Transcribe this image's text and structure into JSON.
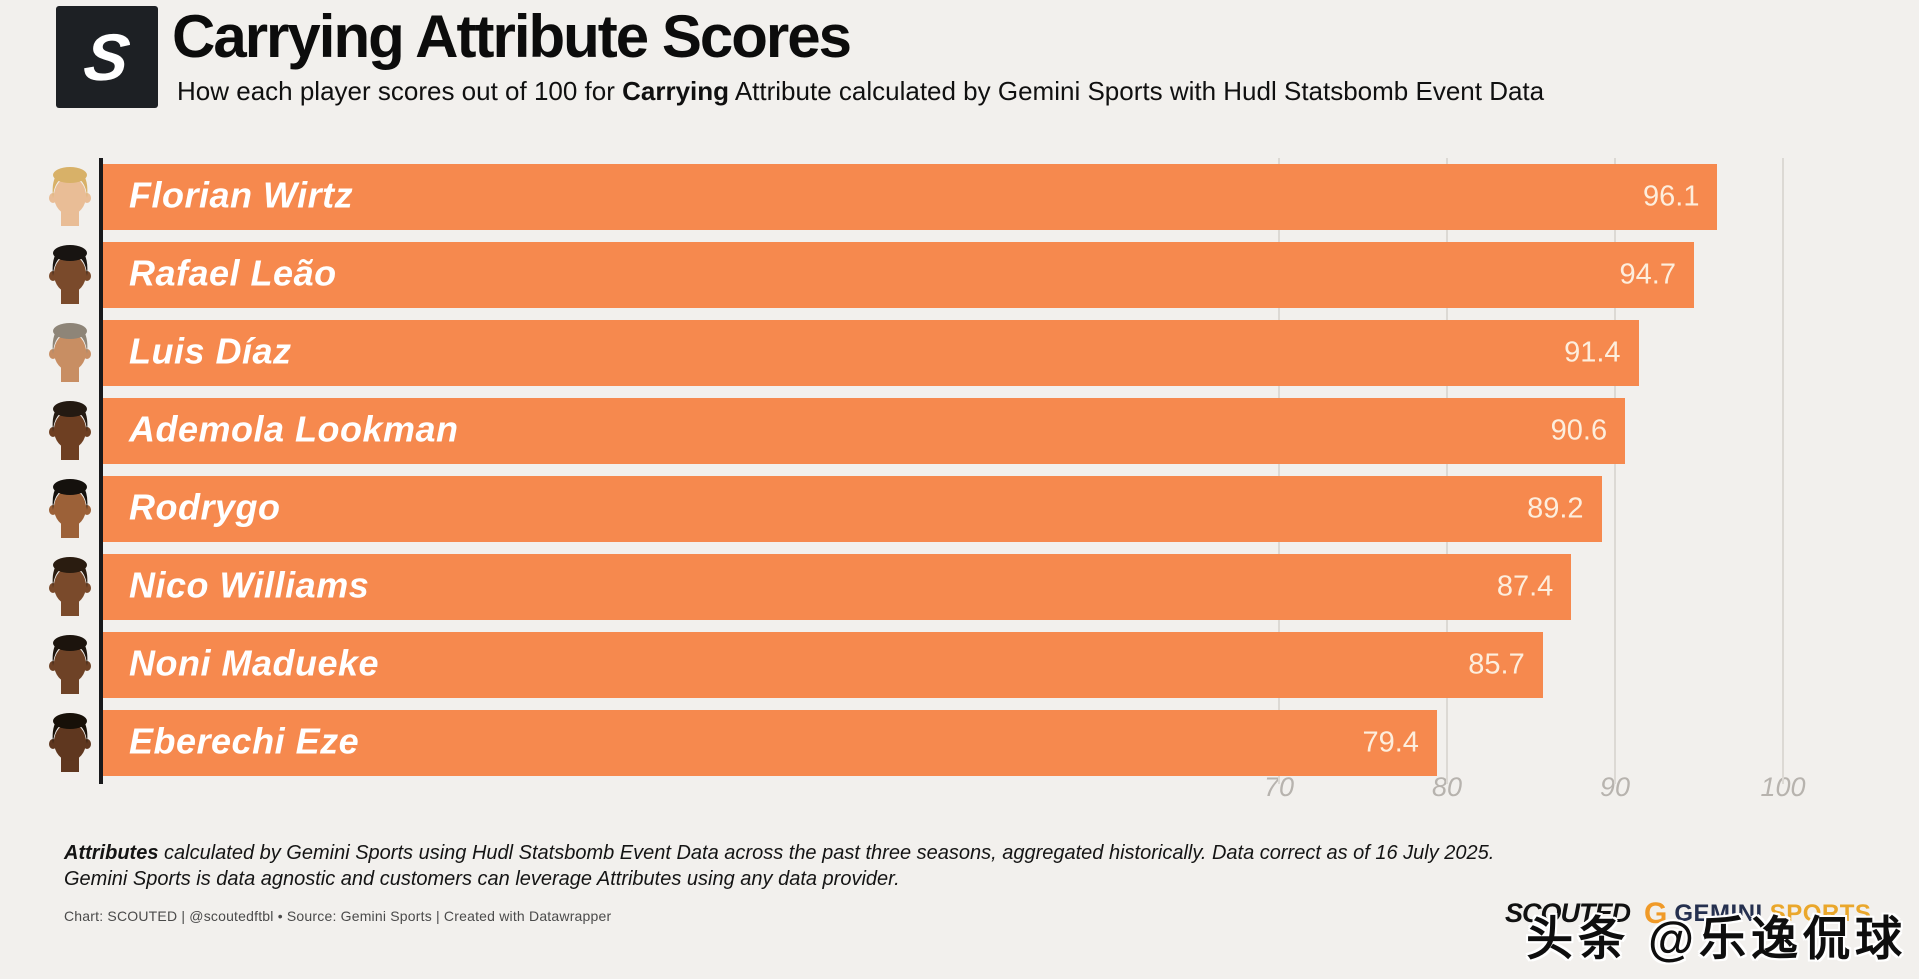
{
  "header": {
    "logo_letter": "S",
    "title": "Carrying Attribute Scores",
    "subtitle_prefix": "How each player scores out of 100 for ",
    "subtitle_bold": "Carrying",
    "subtitle_suffix": " Attribute calculated by Gemini Sports with Hudl Statsbomb Event Data"
  },
  "chart_data": {
    "type": "bar",
    "orientation": "horizontal",
    "title": "Carrying Attribute Scores",
    "categories": [
      "Florian Wirtz",
      "Rafael Leão",
      "Luis Díaz",
      "Ademola Lookman",
      "Rodrygo",
      "Nico Williams",
      "Noni Madueke",
      "Eberechi Eze"
    ],
    "values": [
      96.1,
      94.7,
      91.4,
      90.6,
      89.2,
      87.4,
      85.7,
      79.4
    ],
    "xlim": [
      0,
      100
    ],
    "x_ticks": [
      70,
      80,
      90,
      100
    ],
    "grid": true,
    "legend": "none",
    "bar_color": "#f6894e",
    "value_label_color": "#fdeedd",
    "avatars": [
      {
        "player": "florian-wirtz",
        "skin": "#e9bd96",
        "hair": "#d8b168"
      },
      {
        "player": "rafael-leao",
        "skin": "#7a4a2b",
        "hair": "#181411"
      },
      {
        "player": "luis-diaz",
        "skin": "#c88e63",
        "hair": "#8e8578"
      },
      {
        "player": "ademola-lookman",
        "skin": "#6e3f22",
        "hair": "#241a12"
      },
      {
        "player": "rodrygo",
        "skin": "#9c6138",
        "hair": "#15110d"
      },
      {
        "player": "nico-williams",
        "skin": "#7a4a2b",
        "hair": "#2a1c10"
      },
      {
        "player": "noni-madueke",
        "skin": "#6e4226",
        "hair": "#1c140d"
      },
      {
        "player": "eberechi-eze",
        "skin": "#5f371f",
        "hair": "#171008"
      }
    ]
  },
  "footer": {
    "note_bold": "Attributes",
    "note_line1_rest": " calculated by Gemini Sports using Hudl Statsbomb Event Data across the past three seasons, aggregated historically. Data correct as of 16 July 2025.",
    "note_line2": "Gemini Sports is data agnostic and customers can leverage Attributes using any data provider.",
    "attribution": "Chart: SCOUTED | @scoutedftbl • Source: Gemini Sports | Created with Datawrapper"
  },
  "branding": {
    "scouted_wordmark": "SCOUTED",
    "gemini_g": "G",
    "gemini_wordmark": "GEMINI",
    "gemini_sports": "SPORTS"
  },
  "watermark": "头条 @乐逸侃球"
}
